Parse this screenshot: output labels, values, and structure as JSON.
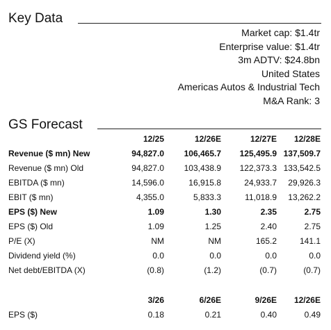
{
  "key_data": {
    "title": "Key Data",
    "items": [
      "Market cap: $1.4tr",
      "Enterprise value: $1.4tr",
      "3m ADTV: $24.8bn",
      "United States",
      "Americas Autos & Industrial Tech",
      "M&A Rank: 3"
    ]
  },
  "forecast": {
    "title": "GS Forecast",
    "columns": [
      "12/25",
      "12/26E",
      "12/27E",
      "12/28E"
    ],
    "rows": [
      {
        "label": "Revenue ($ mn) New",
        "values": [
          "94,827.0",
          "106,465.7",
          "125,495.9",
          "137,509.7"
        ],
        "bold": true
      },
      {
        "label": "Revenue ($ mn) Old",
        "values": [
          "94,827.0",
          "103,438.9",
          "122,373.3",
          "133,542.5"
        ],
        "bold": false
      },
      {
        "label": "EBITDA ($ mn)",
        "values": [
          "14,596.0",
          "16,915.8",
          "24,933.7",
          "29,926.3"
        ],
        "bold": false
      },
      {
        "label": "EBIT ($ mn)",
        "values": [
          "4,355.0",
          "5,833.3",
          "11,018.9",
          "13,262.2"
        ],
        "bold": false
      },
      {
        "label": "EPS ($) New",
        "values": [
          "1.09",
          "1.30",
          "2.35",
          "2.75"
        ],
        "bold": true
      },
      {
        "label": "EPS ($) Old",
        "values": [
          "1.09",
          "1.25",
          "2.40",
          "2.75"
        ],
        "bold": false
      },
      {
        "label": "P/E (X)",
        "values": [
          "NM",
          "NM",
          "165.2",
          "141.1"
        ],
        "bold": false
      },
      {
        "label": "Dividend yield (%)",
        "values": [
          "0.0",
          "0.0",
          "0.0",
          "0.0"
        ],
        "bold": false
      },
      {
        "label": "Net debt/EBITDA (X)",
        "values": [
          "(0.8)",
          "(1.2)",
          "(0.7)",
          "(0.7)"
        ],
        "bold": false
      }
    ]
  },
  "quarterly": {
    "columns": [
      "3/26",
      "6/26E",
      "9/26E",
      "12/26E"
    ],
    "rows": [
      {
        "label": "EPS ($)",
        "values": [
          "0.18",
          "0.21",
          "0.40",
          "0.49"
        ],
        "bold": false
      }
    ]
  }
}
